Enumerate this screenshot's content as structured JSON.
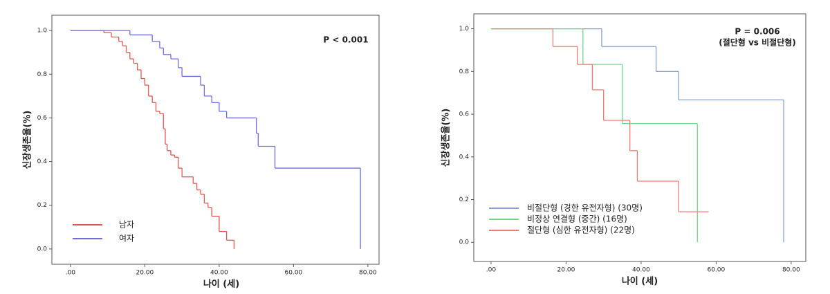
{
  "chart_data": [
    {
      "type": "step",
      "x_label": "나이 (세)",
      "y_label": "신장생존율(%)",
      "annotation": "P < 0.001",
      "xlim": [
        -5,
        83
      ],
      "ylim": [
        -0.07,
        1.07
      ],
      "xticks": [
        {
          "value": 0,
          "label": ".00"
        },
        {
          "value": 20,
          "label": "20.00"
        },
        {
          "value": 40,
          "label": "40.00"
        },
        {
          "value": 60,
          "label": "60.00"
        },
        {
          "value": 80,
          "label": "80.00"
        }
      ],
      "yticks": [
        {
          "value": 0,
          "label": "0.0"
        },
        0.2,
        0.4,
        0.6,
        0.8,
        {
          "value": 1,
          "label": "1.0"
        }
      ],
      "legend": "lower left",
      "series": [
        {
          "name": "남자",
          "color": "#e8544f",
          "x": [
            0,
            9,
            11,
            13,
            14,
            15,
            16,
            17,
            18,
            19,
            20,
            21,
            22,
            23,
            24,
            25,
            25.5,
            26,
            27,
            28,
            29,
            30,
            33,
            34,
            35,
            36,
            37,
            38,
            40,
            42,
            44
          ],
          "values": [
            1.0,
            0.99,
            0.97,
            0.95,
            0.93,
            0.9,
            0.87,
            0.85,
            0.82,
            0.78,
            0.75,
            0.7,
            0.67,
            0.63,
            0.62,
            0.55,
            0.48,
            0.45,
            0.43,
            0.42,
            0.37,
            0.33,
            0.3,
            0.27,
            0.25,
            0.21,
            0.19,
            0.15,
            0.08,
            0.04,
            0.0
          ]
        },
        {
          "name": "여자",
          "color": "#6d6de0",
          "x": [
            0,
            16,
            22,
            24,
            25,
            27,
            29,
            30,
            35,
            36,
            38,
            40,
            42,
            50,
            50.5,
            55,
            78
          ],
          "values": [
            1.0,
            0.98,
            0.95,
            0.92,
            0.89,
            0.87,
            0.83,
            0.79,
            0.75,
            0.7,
            0.67,
            0.63,
            0.6,
            0.53,
            0.47,
            0.37,
            0.0
          ]
        }
      ]
    },
    {
      "type": "step",
      "x_label": "나이 (세)",
      "y_label": "신장생존율(%)",
      "annotation": "P = 0.006",
      "annotation_2": "(절단형 vs 비절단형)",
      "xlim": [
        -4.6,
        83.9
      ],
      "ylim": [
        -0.09,
        1.07
      ],
      "xticks": [
        {
          "value": 0,
          "label": ".00"
        },
        {
          "value": 20,
          "label": "20.00"
        },
        {
          "value": 40,
          "label": "40.00"
        },
        {
          "value": 60,
          "label": "60.00"
        },
        {
          "value": 80,
          "label": "80.00"
        }
      ],
      "yticks": [
        {
          "value": 0,
          "label": "0.0"
        },
        0.2,
        0.4,
        0.6,
        0.8,
        {
          "value": 1,
          "label": "1.0"
        }
      ],
      "legend": "lower left",
      "series": [
        {
          "name": "비절단형 (경한 유전자형) (30명)",
          "color": "#8a9fd0",
          "x": [
            0,
            29.5,
            44,
            50,
            78
          ],
          "values": [
            1.0,
            0.917,
            0.8,
            0.667,
            0.0
          ]
        },
        {
          "name": "비정상 연결형 (중간) (16명)",
          "color": "#6fd68a",
          "x": [
            0,
            24.5,
            35,
            55
          ],
          "values": [
            1.0,
            0.833,
            0.556,
            0.0
          ]
        },
        {
          "name": "절단형 (심한 유전자형) (22명)",
          "color": "#ef7a72",
          "x": [
            0,
            16.5,
            23,
            27,
            30,
            37,
            39,
            50,
            58
          ],
          "values": [
            1.0,
            0.917,
            0.833,
            0.714,
            0.571,
            0.429,
            0.286,
            0.143,
            0.143
          ]
        }
      ]
    }
  ]
}
